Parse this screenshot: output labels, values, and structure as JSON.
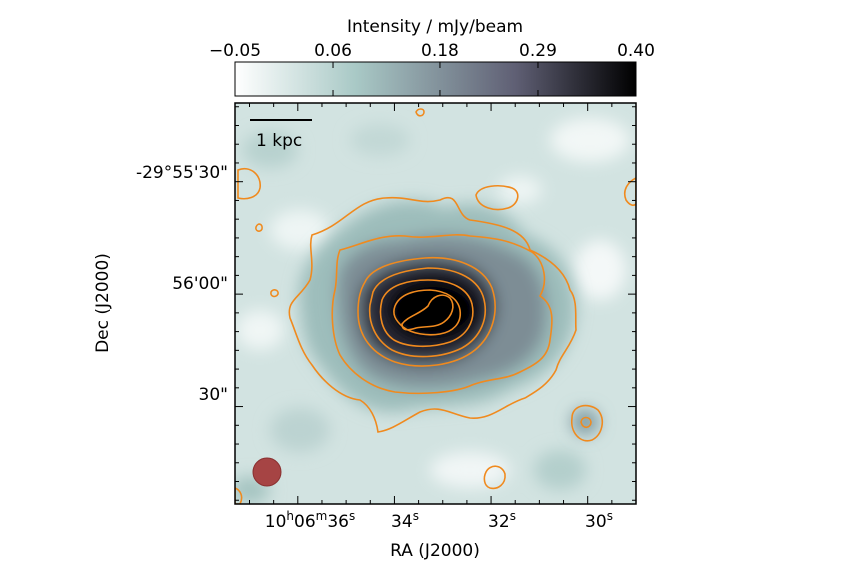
{
  "chart_data": {
    "type": "heatmap",
    "colorbar": {
      "label": "Intensity / mJy/beam",
      "ticks": [
        "−0.05",
        "0.06",
        "0.18",
        "0.29",
        "0.40"
      ],
      "tick_values": [
        -0.05,
        0.06,
        0.18,
        0.29,
        0.4
      ],
      "range": [
        -0.05,
        0.4
      ],
      "colormap": [
        "#ffffff",
        "#a9c9c6",
        "#5f5f74",
        "#000000"
      ]
    },
    "xlabel": "RA (J2000)",
    "ylabel": "Dec (J2000)",
    "x_ticks": [
      {
        "text": "10h06m36s",
        "value": 36
      },
      {
        "text": "34s",
        "value": 34
      },
      {
        "text": "32s",
        "value": 32
      },
      {
        "text": "30s",
        "value": 30
      }
    ],
    "x_range_seconds": [
      37.3,
      29.0
    ],
    "y_ticks": [
      {
        "text": "-29°55'30\"",
        "arcsec": 30
      },
      {
        "text": "56'00\"",
        "arcsec": 0
      },
      {
        "text": "30\"",
        "arcsec": -30
      }
    ],
    "y_range_arcsec": [
      51,
      -56
    ],
    "scalebar_label": "1 kpc",
    "beam_color": "#a64444",
    "contour_color": "#f08a1e",
    "contour_levels_mJy": [
      0.06,
      0.12,
      0.21,
      0.27,
      0.33,
      0.39,
      0.44
    ]
  }
}
